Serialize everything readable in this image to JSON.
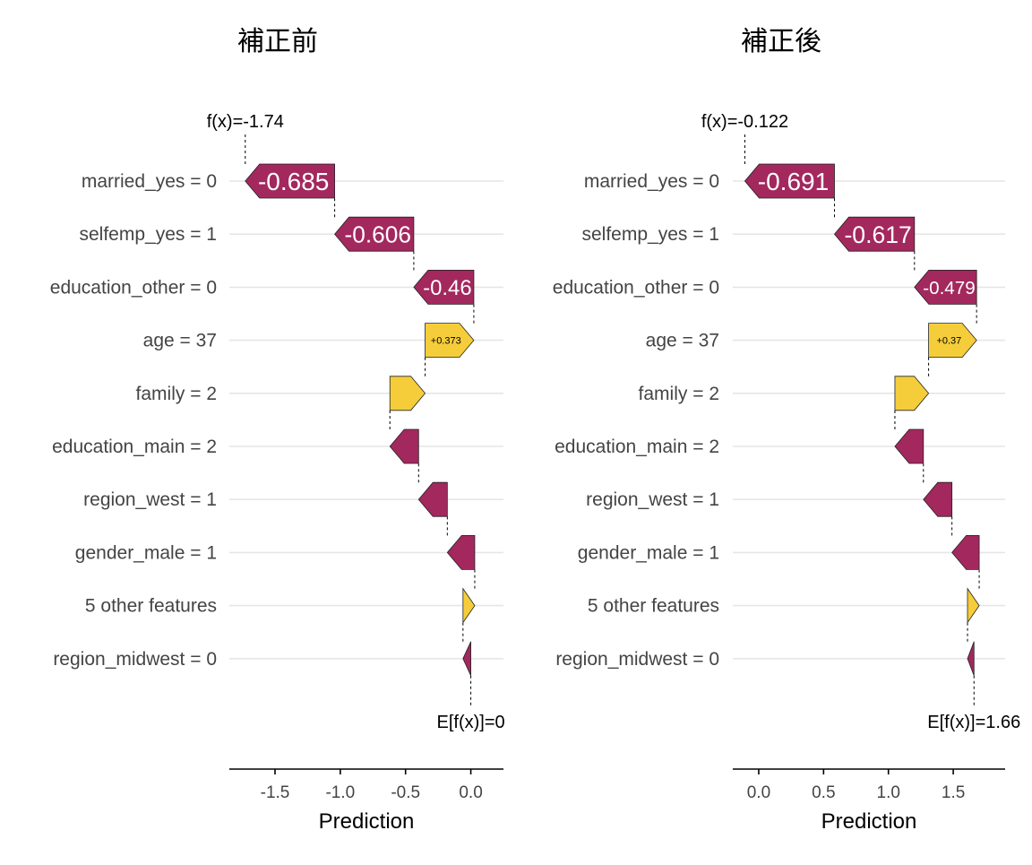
{
  "chart_data": [
    {
      "type": "waterfall",
      "title": "補正前",
      "xlabel": "Prediction",
      "xlim": [
        -1.85,
        0.25
      ],
      "xticks": [
        -1.5,
        -1.0,
        -0.5,
        0.0
      ],
      "xtick_labels": [
        "-1.5",
        "-1.0",
        "-0.5",
        "0.0"
      ],
      "base_value": 0,
      "base_label": "E[f(x)]=0",
      "final_value": -1.74,
      "final_label": "f(x)=-1.74",
      "features": [
        {
          "label": "married_yes = 0",
          "value": -0.685,
          "text": "-0.685"
        },
        {
          "label": "selfemp_yes = 1",
          "value": -0.606,
          "text": "-0.606"
        },
        {
          "label": "education_other = 0",
          "value": -0.46,
          "text": "-0.46"
        },
        {
          "label": "age = 37",
          "value": 0.373,
          "text": "+0.373"
        },
        {
          "label": "family = 2",
          "value": 0.27,
          "text": ""
        },
        {
          "label": "education_main = 2",
          "value": -0.22,
          "text": ""
        },
        {
          "label": "region_west = 1",
          "value": -0.22,
          "text": ""
        },
        {
          "label": "gender_male = 1",
          "value": -0.21,
          "text": ""
        },
        {
          "label": "5 other features",
          "value": 0.09,
          "text": ""
        },
        {
          "label": "region_midwest = 0",
          "value": -0.06,
          "text": ""
        }
      ]
    },
    {
      "type": "waterfall",
      "title": "補正後",
      "xlabel": "Prediction",
      "xlim": [
        -0.2,
        1.9
      ],
      "xticks": [
        0.0,
        0.5,
        1.0,
        1.5
      ],
      "xtick_labels": [
        "0.0",
        "0.5",
        "1.0",
        "1.5"
      ],
      "base_value": 1.66,
      "base_label": "E[f(x)]=1.66",
      "final_value": -0.122,
      "final_label": "f(x)=-0.122",
      "features": [
        {
          "label": "married_yes = 0",
          "value": -0.691,
          "text": "-0.691"
        },
        {
          "label": "selfemp_yes = 1",
          "value": -0.617,
          "text": "-0.617"
        },
        {
          "label": "education_other = 0",
          "value": -0.479,
          "text": "-0.479"
        },
        {
          "label": "age = 37",
          "value": 0.37,
          "text": "+0.37"
        },
        {
          "label": "family = 2",
          "value": 0.26,
          "text": ""
        },
        {
          "label": "education_main = 2",
          "value": -0.22,
          "text": ""
        },
        {
          "label": "region_west = 1",
          "value": -0.22,
          "text": ""
        },
        {
          "label": "gender_male = 1",
          "value": -0.21,
          "text": ""
        },
        {
          "label": "5 other features",
          "value": 0.09,
          "text": ""
        },
        {
          "label": "region_midwest = 0",
          "value": -0.05,
          "text": ""
        }
      ]
    }
  ],
  "colors": {
    "negative": "#A3285E",
    "positive": "#F5CD3A",
    "label_on_negative": "#FFFFFF",
    "label_on_positive": "#000000"
  }
}
